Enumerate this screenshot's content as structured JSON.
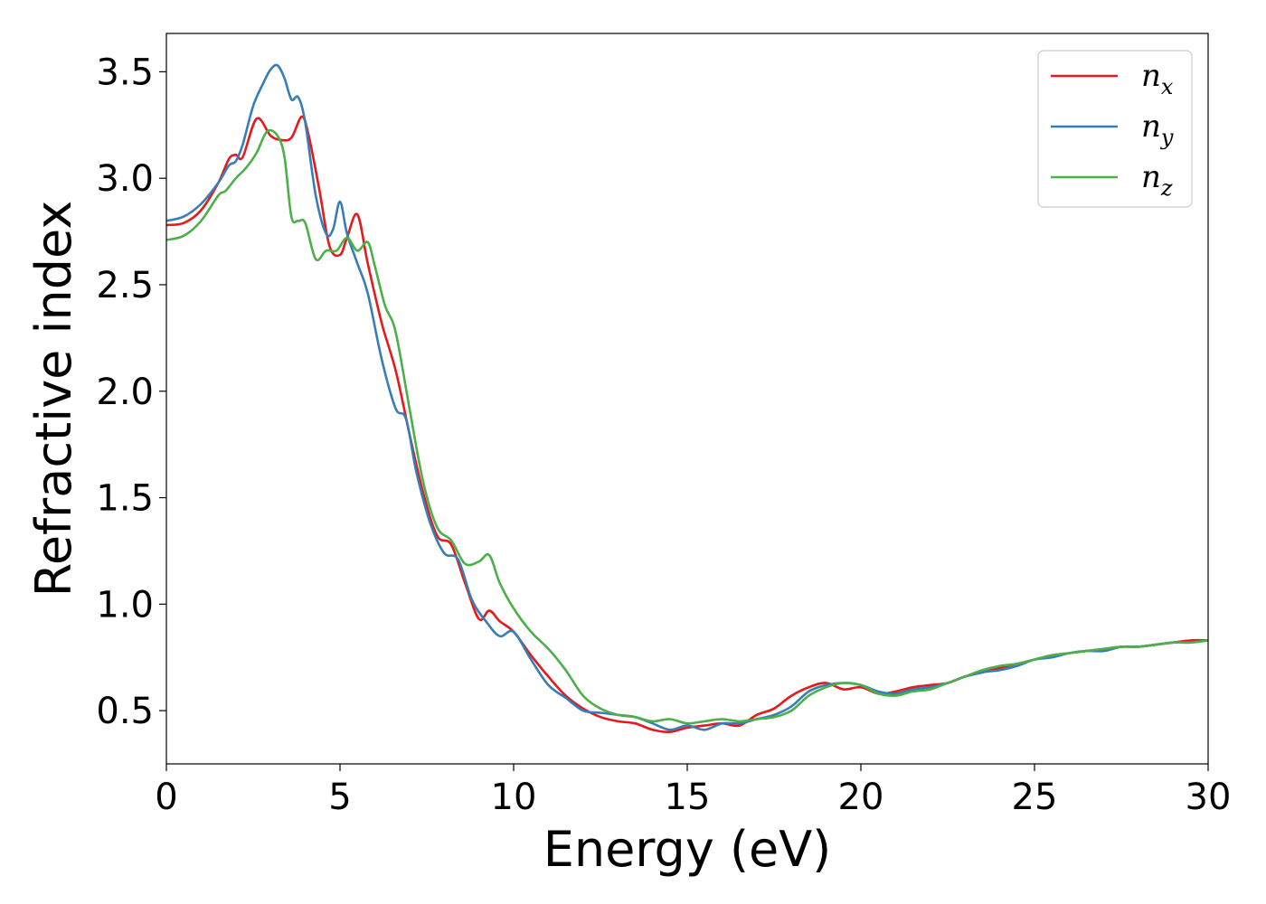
{
  "chart_data": {
    "type": "line",
    "xlabel": "Energy (eV)",
    "ylabel": "Refractive index",
    "xlim": [
      0,
      30
    ],
    "ylim": [
      0.25,
      3.68
    ],
    "xticks": [
      0,
      5,
      10,
      15,
      20,
      25,
      30
    ],
    "yticks": [
      0.5,
      1.0,
      1.5,
      2.0,
      2.5,
      3.0,
      3.5
    ],
    "xtick_labels": [
      "0",
      "5",
      "10",
      "15",
      "20",
      "25",
      "30"
    ],
    "ytick_labels": [
      "0.5",
      "1.0",
      "1.5",
      "2.0",
      "2.5",
      "3.0",
      "3.5"
    ],
    "grid": false,
    "legend": {
      "placement": "top-right"
    },
    "series": [
      {
        "name": "n_x",
        "symbol": "n",
        "subscript": "x",
        "color": "#e41a1c",
        "x": [
          0,
          0.5,
          1,
          1.5,
          1.8,
          2.0,
          2.2,
          2.6,
          3.0,
          3.3,
          3.6,
          3.9,
          4.1,
          4.4,
          4.7,
          5.0,
          5.2,
          5.5,
          5.8,
          6.2,
          6.6,
          7.0,
          7.4,
          7.8,
          8.2,
          8.6,
          9.0,
          9.3,
          9.6,
          10.0,
          10.5,
          11.0,
          11.5,
          12.0,
          12.5,
          13.0,
          13.5,
          14.0,
          14.5,
          15.0,
          15.5,
          16.0,
          16.5,
          17.0,
          17.5,
          18.0,
          18.5,
          19.0,
          19.5,
          20.0,
          20.5,
          21.0,
          21.5,
          22.0,
          22.5,
          23.0,
          23.5,
          24.0,
          24.5,
          25.0,
          25.5,
          26.0,
          26.5,
          27.0,
          27.5,
          28.0,
          28.5,
          29.0,
          29.5,
          30.0
        ],
        "y": [
          2.78,
          2.79,
          2.85,
          2.98,
          3.09,
          3.11,
          3.1,
          3.28,
          3.2,
          3.18,
          3.19,
          3.29,
          3.2,
          2.95,
          2.68,
          2.64,
          2.72,
          2.83,
          2.6,
          2.32,
          2.1,
          1.8,
          1.52,
          1.32,
          1.28,
          1.1,
          0.93,
          0.97,
          0.92,
          0.87,
          0.76,
          0.66,
          0.57,
          0.51,
          0.47,
          0.45,
          0.44,
          0.41,
          0.4,
          0.42,
          0.43,
          0.44,
          0.43,
          0.48,
          0.51,
          0.57,
          0.61,
          0.63,
          0.6,
          0.61,
          0.58,
          0.59,
          0.61,
          0.62,
          0.63,
          0.66,
          0.68,
          0.7,
          0.72,
          0.74,
          0.76,
          0.77,
          0.78,
          0.79,
          0.8,
          0.8,
          0.81,
          0.82,
          0.83,
          0.83
        ]
      },
      {
        "name": "n_y",
        "symbol": "n",
        "subscript": "y",
        "color": "#377eb8",
        "x": [
          0,
          0.5,
          1,
          1.5,
          1.8,
          2.0,
          2.2,
          2.5,
          2.8,
          3.0,
          3.2,
          3.4,
          3.6,
          3.8,
          4.0,
          4.3,
          4.6,
          4.8,
          5.0,
          5.2,
          5.5,
          5.8,
          6.2,
          6.6,
          6.9,
          7.2,
          7.6,
          8.0,
          8.4,
          8.8,
          9.2,
          9.6,
          10.0,
          10.5,
          11.0,
          11.5,
          12.0,
          12.5,
          13.0,
          13.5,
          14.0,
          14.5,
          15.0,
          15.5,
          16.0,
          16.5,
          17.0,
          17.5,
          18.0,
          18.5,
          19.0,
          19.5,
          20.0,
          20.5,
          21.0,
          21.5,
          22.0,
          22.5,
          23.0,
          23.5,
          24.0,
          24.5,
          25.0,
          25.5,
          26.0,
          26.5,
          27.0,
          27.5,
          28.0,
          28.5,
          29.0,
          29.5,
          30.0
        ],
        "y": [
          2.8,
          2.82,
          2.88,
          2.98,
          3.06,
          3.08,
          3.16,
          3.34,
          3.45,
          3.51,
          3.53,
          3.47,
          3.37,
          3.38,
          3.26,
          2.92,
          2.74,
          2.76,
          2.89,
          2.74,
          2.6,
          2.46,
          2.15,
          1.92,
          1.87,
          1.62,
          1.38,
          1.24,
          1.21,
          1.02,
          0.92,
          0.85,
          0.87,
          0.74,
          0.62,
          0.56,
          0.5,
          0.49,
          0.48,
          0.47,
          0.44,
          0.41,
          0.43,
          0.41,
          0.44,
          0.44,
          0.46,
          0.48,
          0.52,
          0.59,
          0.62,
          0.63,
          0.62,
          0.59,
          0.58,
          0.6,
          0.61,
          0.63,
          0.66,
          0.68,
          0.69,
          0.71,
          0.74,
          0.75,
          0.77,
          0.78,
          0.78,
          0.8,
          0.8,
          0.81,
          0.82,
          0.82,
          0.83
        ]
      },
      {
        "name": "n_z",
        "symbol": "n",
        "subscript": "z",
        "color": "#4daf4a",
        "x": [
          0,
          0.5,
          1,
          1.5,
          1.7,
          2.0,
          2.3,
          2.6,
          2.9,
          3.2,
          3.4,
          3.6,
          3.8,
          4.0,
          4.3,
          4.6,
          4.9,
          5.2,
          5.5,
          5.8,
          6.0,
          6.3,
          6.6,
          7.0,
          7.4,
          7.8,
          8.2,
          8.6,
          9.0,
          9.3,
          9.6,
          10.0,
          10.5,
          11.0,
          11.5,
          12.0,
          12.5,
          13.0,
          13.5,
          14.0,
          14.5,
          15.0,
          15.5,
          16.0,
          16.5,
          17.0,
          17.5,
          18.0,
          18.5,
          19.0,
          19.5,
          20.0,
          20.5,
          21.0,
          21.5,
          22.0,
          22.5,
          23.0,
          23.5,
          24.0,
          24.5,
          25.0,
          25.5,
          26.0,
          26.5,
          27.0,
          27.5,
          28.0,
          28.5,
          29.0,
          29.5,
          30.0
        ],
        "y": [
          2.71,
          2.73,
          2.8,
          2.92,
          2.94,
          3.0,
          3.05,
          3.12,
          3.22,
          3.2,
          3.1,
          2.82,
          2.8,
          2.79,
          2.62,
          2.66,
          2.66,
          2.72,
          2.66,
          2.7,
          2.59,
          2.4,
          2.28,
          1.92,
          1.57,
          1.36,
          1.3,
          1.19,
          1.2,
          1.23,
          1.1,
          0.98,
          0.87,
          0.79,
          0.69,
          0.57,
          0.51,
          0.48,
          0.47,
          0.45,
          0.46,
          0.44,
          0.45,
          0.46,
          0.45,
          0.46,
          0.47,
          0.5,
          0.57,
          0.61,
          0.63,
          0.62,
          0.58,
          0.57,
          0.59,
          0.6,
          0.63,
          0.66,
          0.69,
          0.71,
          0.72,
          0.74,
          0.76,
          0.77,
          0.78,
          0.79,
          0.8,
          0.8,
          0.81,
          0.82,
          0.82,
          0.83
        ]
      }
    ]
  }
}
